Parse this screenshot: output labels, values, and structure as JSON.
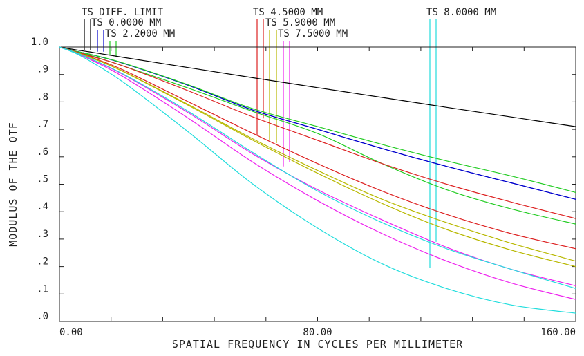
{
  "chart_data": {
    "type": "line",
    "xlabel": "SPATIAL FREQUENCY IN CYCLES PER MILLIMETER",
    "ylabel": "MODULUS OF THE OTF",
    "xlim": [
      0,
      160
    ],
    "ylim": [
      0,
      1
    ],
    "grid": false,
    "x_tick_labels": [
      "0.00",
      "80.00",
      "160.00"
    ],
    "x_tick_values": [
      0,
      80,
      160
    ],
    "y_tick_labels": [
      ".0",
      ".1",
      ".2",
      ".3",
      ".4",
      ".5",
      ".6",
      ".7",
      ".8",
      ".9",
      "1.0"
    ],
    "y_tick_values": [
      0,
      0.1,
      0.2,
      0.3,
      0.4,
      0.5,
      0.6,
      0.7,
      0.8,
      0.9,
      1.0
    ],
    "x_minor_tick_values": [
      16,
      32,
      48,
      64,
      96,
      112,
      128,
      144
    ],
    "legend_labels": [
      {
        "text": "TS DIFF. LIMIT",
        "color": "#000000"
      },
      {
        "text": "TS 0.0000 MM",
        "color": "#0000cc"
      },
      {
        "text": "TS 2.2000 MM",
        "color": "#22cc22"
      },
      {
        "text": "TS 4.5000 MM",
        "color": "#dd2222"
      },
      {
        "text": "TS 5.9000 MM",
        "color": "#b8b800"
      },
      {
        "text": "TS 7.5000 MM",
        "color": "#ee22ee"
      },
      {
        "text": "TS 8.0000 MM",
        "color": "#22dddd"
      }
    ],
    "series": [
      {
        "name": "TS DIFF. LIMIT",
        "color": "#000000",
        "x": [
          0,
          5,
          10,
          20,
          40,
          60,
          80,
          100,
          120,
          140,
          160
        ],
        "y": [
          1.0,
          0.99,
          0.981,
          0.962,
          0.925,
          0.888,
          0.852,
          0.816,
          0.78,
          0.745,
          0.71
        ]
      },
      {
        "name": "TS 0.0000 MM",
        "color": "#0000cc",
        "x": [
          0,
          5,
          10,
          20,
          40,
          60,
          80,
          100,
          120,
          140,
          160
        ],
        "y": [
          1.0,
          0.985,
          0.972,
          0.94,
          0.86,
          0.77,
          0.7,
          0.63,
          0.565,
          0.505,
          0.445
        ]
      },
      {
        "name": "TS 0.0000 MM",
        "color": "#0000cc",
        "x": [
          0,
          5,
          10,
          20,
          40,
          60,
          80,
          100,
          120,
          140,
          160
        ],
        "y": [
          1.0,
          0.985,
          0.972,
          0.94,
          0.86,
          0.77,
          0.7,
          0.63,
          0.565,
          0.505,
          0.445
        ]
      },
      {
        "name": "TS 2.2000 MM",
        "color": "#22cc22",
        "x": [
          0,
          5,
          10,
          20,
          40,
          60,
          80,
          100,
          120,
          140,
          160
        ],
        "y": [
          1.0,
          0.985,
          0.972,
          0.941,
          0.862,
          0.775,
          0.71,
          0.645,
          0.585,
          0.53,
          0.47
        ]
      },
      {
        "name": "TS 2.2000 MM",
        "color": "#22cc22",
        "x": [
          0,
          5,
          10,
          20,
          40,
          60,
          80,
          100,
          120,
          140,
          160
        ],
        "y": [
          1.0,
          0.984,
          0.968,
          0.93,
          0.85,
          0.765,
          0.685,
          0.575,
          0.48,
          0.41,
          0.355
        ]
      },
      {
        "name": "TS 4.5000 MM",
        "color": "#dd2222",
        "x": [
          0,
          5,
          10,
          20,
          40,
          60,
          80,
          100,
          120,
          140,
          160
        ],
        "y": [
          1.0,
          0.983,
          0.966,
          0.93,
          0.84,
          0.745,
          0.66,
          0.575,
          0.5,
          0.435,
          0.375
        ]
      },
      {
        "name": "TS 4.5000 MM",
        "color": "#dd2222",
        "x": [
          0,
          5,
          10,
          20,
          40,
          60,
          80,
          100,
          120,
          140,
          160
        ],
        "y": [
          1.0,
          0.982,
          0.962,
          0.915,
          0.8,
          0.685,
          0.575,
          0.475,
          0.39,
          0.32,
          0.265
        ]
      },
      {
        "name": "TS 5.9000 MM",
        "color": "#b8b800",
        "x": [
          0,
          5,
          10,
          20,
          40,
          60,
          80,
          100,
          120,
          140,
          160
        ],
        "y": [
          1.0,
          0.981,
          0.96,
          0.91,
          0.79,
          0.665,
          0.55,
          0.445,
          0.36,
          0.285,
          0.22
        ]
      },
      {
        "name": "TS 5.9000 MM",
        "color": "#b8b800",
        "x": [
          0,
          5,
          10,
          20,
          40,
          60,
          80,
          100,
          120,
          140,
          160
        ],
        "y": [
          1.0,
          0.981,
          0.96,
          0.909,
          0.787,
          0.66,
          0.54,
          0.43,
          0.335,
          0.26,
          0.2
        ]
      },
      {
        "name": "TS 7.5000 MM",
        "color": "#ee22ee",
        "x": [
          0,
          5,
          10,
          20,
          40,
          60,
          80,
          100,
          120,
          140,
          160
        ],
        "y": [
          1.0,
          0.98,
          0.955,
          0.898,
          0.76,
          0.61,
          0.48,
          0.37,
          0.27,
          0.19,
          0.13
        ]
      },
      {
        "name": "TS 7.5000 MM",
        "color": "#ee22ee",
        "x": [
          0,
          5,
          10,
          20,
          40,
          60,
          80,
          100,
          120,
          140,
          160
        ],
        "y": [
          1.0,
          0.978,
          0.952,
          0.89,
          0.74,
          0.58,
          0.44,
          0.32,
          0.22,
          0.14,
          0.08
        ]
      },
      {
        "name": "TS 8.0000 MM",
        "color": "#22dddd",
        "x": [
          0,
          5,
          10,
          20,
          40,
          60,
          80,
          100,
          120,
          140,
          160
        ],
        "y": [
          1.0,
          0.98,
          0.956,
          0.9,
          0.765,
          0.615,
          0.475,
          0.36,
          0.265,
          0.19,
          0.12
        ]
      },
      {
        "name": "TS 8.0000 MM",
        "color": "#22dddd",
        "x": [
          0,
          5,
          10,
          20,
          40,
          60,
          80,
          100,
          120,
          140,
          160
        ],
        "y": [
          1.0,
          0.977,
          0.945,
          0.87,
          0.69,
          0.5,
          0.34,
          0.21,
          0.12,
          0.06,
          0.03
        ]
      }
    ]
  }
}
